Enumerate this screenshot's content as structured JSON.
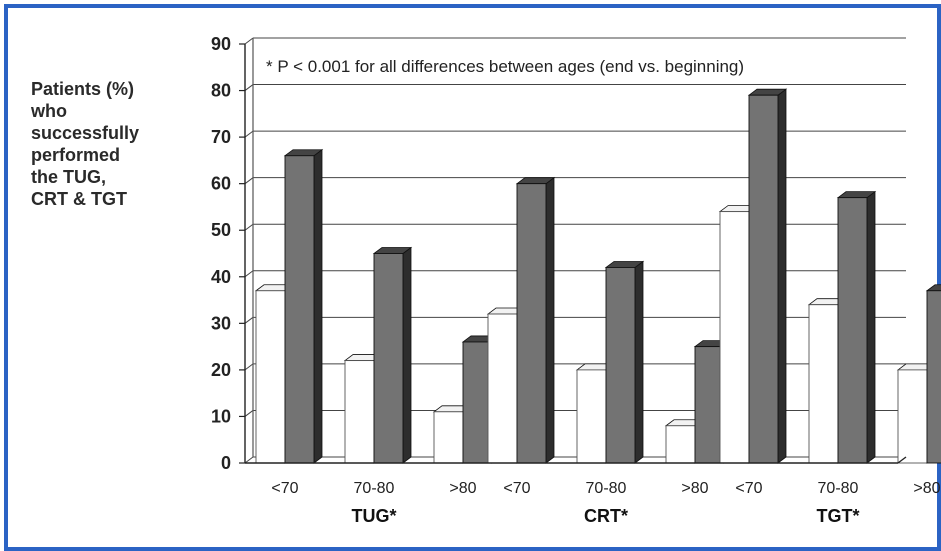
{
  "chart_data": {
    "type": "bar",
    "title": "",
    "ylabel_lines": [
      "Patients (%)",
      "who",
      "successfully",
      "performed",
      "the TUG,",
      "CRT & TGT"
    ],
    "annotation": "* P < 0.001 for all differences between ages (end vs. beginning)",
    "ylim": [
      0,
      90
    ],
    "yticks": [
      0,
      10,
      20,
      30,
      40,
      50,
      60,
      70,
      80,
      90
    ],
    "grid": true,
    "legend": "none",
    "groups": [
      {
        "name": "TUG*",
        "categories": [
          "<70",
          "70-80",
          ">80"
        ],
        "values": [
          [
            37,
            66
          ],
          [
            22,
            45
          ],
          [
            11,
            26
          ]
        ]
      },
      {
        "name": "CRT*",
        "categories": [
          "<70",
          "70-80",
          ">80"
        ],
        "values": [
          [
            32,
            60
          ],
          [
            20,
            42
          ],
          [
            8,
            25
          ]
        ]
      },
      {
        "name": "TGT*",
        "categories": [
          "<70",
          "70-80",
          ">80"
        ],
        "values": [
          [
            54,
            79
          ],
          [
            34,
            57
          ],
          [
            20,
            37
          ]
        ]
      }
    ],
    "colors": {
      "beginning": "#ffffff",
      "end": "#737373",
      "end_side": "#2d2d2d",
      "end_top": "#444444",
      "frame": "#2b63c4"
    }
  }
}
